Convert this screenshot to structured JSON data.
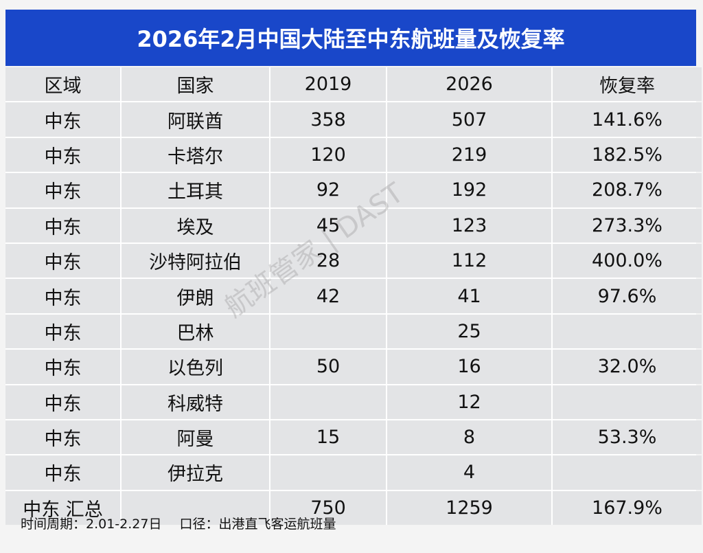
{
  "header": {
    "title": "2026年2月中国大陆至中东航班量及恢复率"
  },
  "table": {
    "columns": [
      "区域",
      "国家",
      "2019",
      "2026",
      "恢复率"
    ],
    "rows": [
      [
        "中东",
        "阿联酋",
        "358",
        "507",
        "141.6%"
      ],
      [
        "中东",
        "卡塔尔",
        "120",
        "219",
        "182.5%"
      ],
      [
        "中东",
        "土耳其",
        "92",
        "192",
        "208.7%"
      ],
      [
        "中东",
        "埃及",
        "45",
        "123",
        "273.3%"
      ],
      [
        "中东",
        "沙特阿拉伯",
        "28",
        "112",
        "400.0%"
      ],
      [
        "中东",
        "伊朗",
        "42",
        "41",
        "97.6%"
      ],
      [
        "中东",
        "巴林",
        null,
        "25",
        null
      ],
      [
        "中东",
        "以色列",
        "50",
        "16",
        "32.0%"
      ],
      [
        "中东",
        "科威特",
        null,
        "12",
        null
      ],
      [
        "中东",
        "阿曼",
        "15",
        "8",
        "53.3%"
      ],
      [
        "中东",
        "伊拉克",
        null,
        "4",
        null
      ],
      [
        "中东 汇总",
        null,
        "750",
        "1259",
        "167.9%"
      ]
    ]
  },
  "watermark": "航班管家 | DAST",
  "footer": {
    "period": "时间周期：2.01-2.27日",
    "scope": "口径：出港直飞客运航班量"
  }
}
